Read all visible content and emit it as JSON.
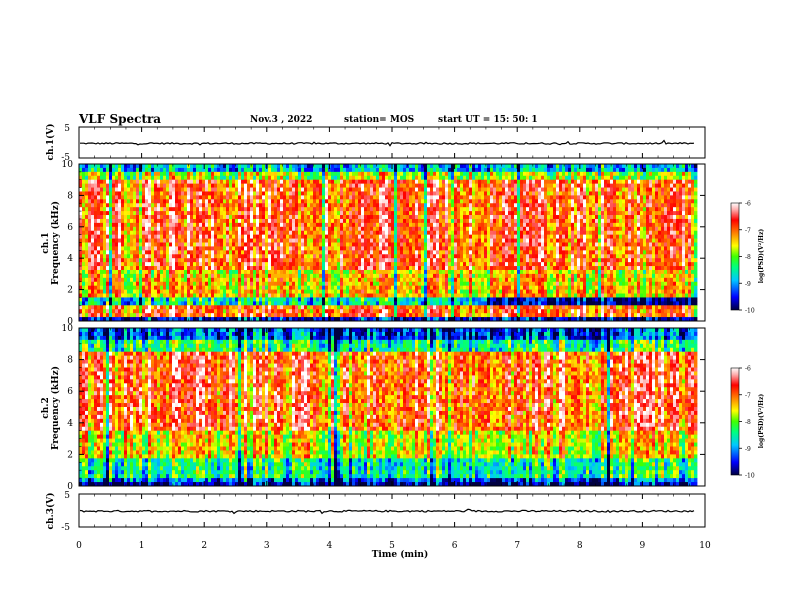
{
  "header": {
    "title": "VLF Spectra",
    "date": "Nov.3 , 2022",
    "station": "station= MOS",
    "start": "start UT = 15: 50: 1"
  },
  "chart_data": [
    {
      "type": "line",
      "name": "ch1-voltage",
      "ylabel": "ch.1(V)",
      "ylim": [
        -5,
        5
      ],
      "yticks": [
        "5",
        "-5"
      ],
      "xlim": [
        0,
        10
      ],
      "level": -0.3
    },
    {
      "type": "heatmap",
      "name": "ch1-spectrogram",
      "ylabel": "ch.1\nFrequency (kHz)",
      "ylabel_lines": [
        "ch.1",
        "Frequency (kHz)"
      ],
      "ylim": [
        0,
        10
      ],
      "yticks": [
        "0",
        "2",
        "4",
        "6",
        "8",
        "10"
      ],
      "xlim": [
        0,
        9.85
      ],
      "colorbar": {
        "label": "log(PSD)(V²/Hz)",
        "range": [
          -10,
          -6
        ],
        "ticks": [
          "-6",
          "-7",
          "-8",
          "-9",
          "-10"
        ]
      }
    },
    {
      "type": "heatmap",
      "name": "ch2-spectrogram",
      "ylabel": "ch.2\nFrequency (kHz)",
      "ylabel_lines": [
        "ch.2",
        "Frequency (kHz)"
      ],
      "ylim": [
        0,
        10
      ],
      "yticks": [
        "0",
        "2",
        "4",
        "6",
        "8",
        "10"
      ],
      "xlim": [
        0,
        9.85
      ],
      "colorbar": {
        "label": "log(PSD)(V²/Hz)",
        "range": [
          -10,
          -6
        ],
        "ticks": [
          "-6",
          "-7",
          "-8",
          "-9",
          "-10"
        ]
      }
    },
    {
      "type": "line",
      "name": "ch3-voltage",
      "ylabel": "ch.3(V)",
      "ylim": [
        -5,
        5
      ],
      "yticks": [
        "5",
        "-5"
      ],
      "xlim": [
        0,
        10
      ],
      "level": -0.2
    }
  ],
  "xaxis": {
    "label": "Time (min)",
    "ticks": [
      "0",
      "1",
      "2",
      "3",
      "4",
      "5",
      "6",
      "7",
      "8",
      "9",
      "10"
    ]
  },
  "colors": {
    "colormap": [
      "#000066",
      "#0000ff",
      "#00a0ff",
      "#00ffff",
      "#00ff80",
      "#40ff00",
      "#ffff00",
      "#ff8000",
      "#ff0000",
      "#ffc0c0",
      "#ffffff"
    ]
  }
}
